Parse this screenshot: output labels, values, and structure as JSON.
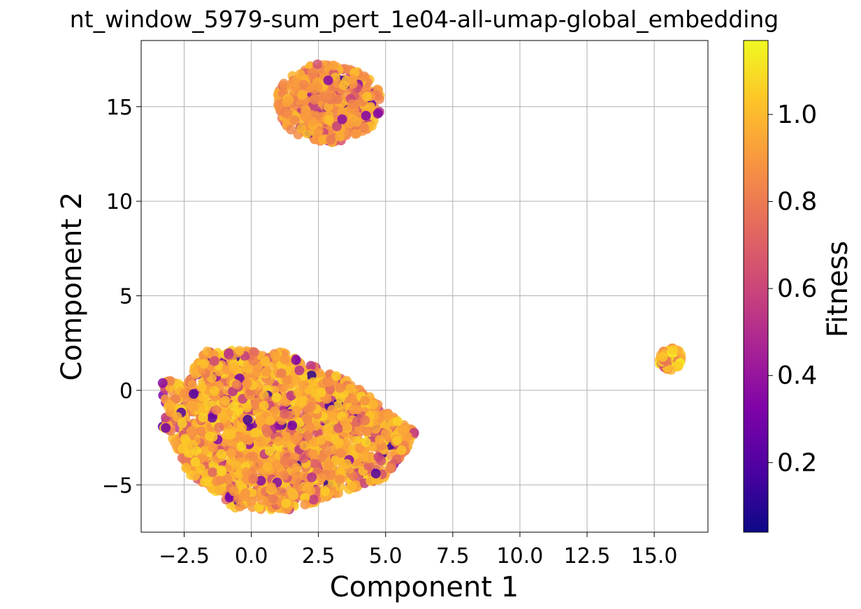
{
  "chart_data": {
    "type": "scatter",
    "title": "nt_window_5979-sum_pert_1e04-all-umap-global_embedding",
    "xlabel": "Component 1",
    "ylabel": "Component 2",
    "xlim": [
      -4.1,
      17.0
    ],
    "ylim": [
      -7.5,
      18.5
    ],
    "xticks": [
      -2.5,
      0.0,
      2.5,
      5.0,
      7.5,
      10.0,
      12.5,
      15.0
    ],
    "xtick_labels": [
      "−2.5",
      "0.0",
      "2.5",
      "5.0",
      "7.5",
      "10.0",
      "12.5",
      "15.0"
    ],
    "yticks": [
      -5,
      0,
      5,
      10,
      15
    ],
    "ytick_labels": [
      "−5",
      "0",
      "5",
      "10",
      "15"
    ],
    "grid": true,
    "colormap": "plasma",
    "colorbar": {
      "label": "Fitness",
      "range": [
        0.04,
        1.17
      ],
      "ticks": [
        0.2,
        0.4,
        0.6,
        0.8,
        1.0
      ],
      "tick_labels": [
        "0.2",
        "0.4",
        "0.6",
        "0.8",
        "1.0"
      ]
    },
    "clusters": [
      {
        "center_x": 1.5,
        "center_y": -2.0,
        "x_range": [
          -3.3,
          6.4
        ],
        "y_range": [
          -6.3,
          2.1
        ],
        "approx_points": 2200,
        "dominant_fitness": 0.95
      },
      {
        "center_x": 2.9,
        "center_y": 15.1,
        "x_range": [
          1.0,
          4.8
        ],
        "y_range": [
          13.1,
          17.4
        ],
        "approx_points": 500,
        "dominant_fitness": 0.9
      },
      {
        "center_x": 15.6,
        "center_y": 1.6,
        "x_range": [
          15.1,
          16.0
        ],
        "y_range": [
          1.0,
          2.3
        ],
        "approx_points": 60,
        "dominant_fitness": 1.02
      }
    ]
  }
}
